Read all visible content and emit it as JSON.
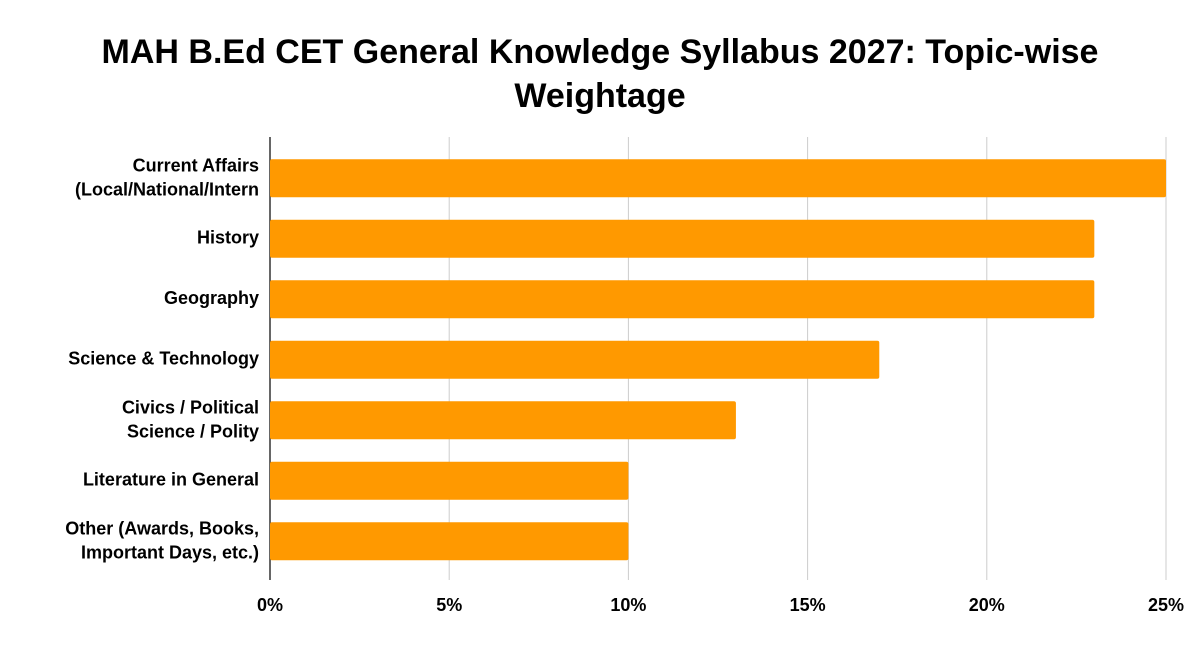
{
  "chart_data": {
    "type": "bar",
    "orientation": "horizontal",
    "title": "MAH B.Ed CET General Knowledge Syllabus 2027: Topic-wise Weightage",
    "categories": [
      "Current Affairs\n(Local/National/Intern",
      "History",
      "Geography",
      "Science & Technology",
      "Civics / Political\nScience / Polity",
      "Literature in General",
      "Other (Awards, Books,\nImportant Days, etc.)"
    ],
    "values": [
      25,
      23,
      23,
      17,
      13,
      10,
      10
    ],
    "color": "#ff9900",
    "xlim": [
      0,
      25
    ],
    "xticks": [
      {
        "value": 0,
        "label": "0%"
      },
      {
        "value": 5,
        "label": "5%"
      },
      {
        "value": 10,
        "label": "10%"
      },
      {
        "value": 15,
        "label": "15%"
      },
      {
        "value": 20,
        "label": "20%"
      },
      {
        "value": 25,
        "label": "25%"
      }
    ],
    "grid": true
  }
}
